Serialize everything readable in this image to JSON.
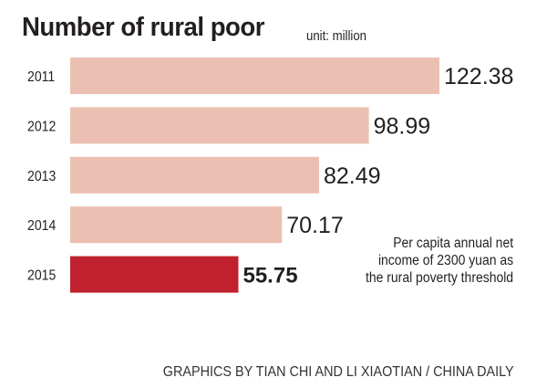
{
  "chart_data": {
    "type": "bar",
    "orientation": "horizontal",
    "title": "Number of rural poor",
    "subtitle": "unit: million",
    "categories": [
      "2011",
      "2012",
      "2013",
      "2014",
      "2015"
    ],
    "values": [
      122.38,
      98.99,
      82.49,
      70.17,
      55.75
    ],
    "value_labels": [
      "122.38",
      "98.99",
      "82.49",
      "70.17",
      "55.75"
    ],
    "highlight_index": 4,
    "colors": {
      "bar": "#ebc0b2",
      "highlight": "#c0212e",
      "text": "#231f20"
    },
    "grid": false,
    "annotation": [
      "Per capita annual net",
      "income of 2300 yuan as",
      "the rural poverty threshold"
    ]
  },
  "credit": "GRAPHICS BY TIAN CHI AND LI XIAOTIAN / CHINA DAILY"
}
